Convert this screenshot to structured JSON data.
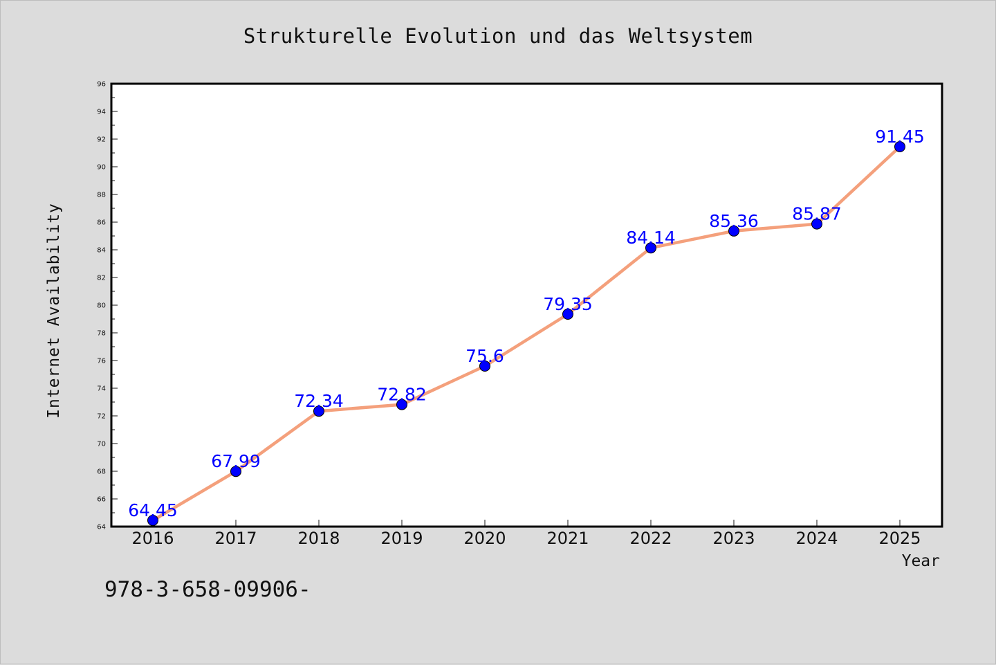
{
  "chart_data": {
    "type": "line",
    "title": "Strukturelle Evolution und das Weltsystem",
    "xlabel": "Year",
    "ylabel": "Internet Availability",
    "categories": [
      "2016",
      "2017",
      "2018",
      "2019",
      "2020",
      "2021",
      "2022",
      "2023",
      "2024",
      "2025"
    ],
    "series": [
      {
        "values": [
          64.45,
          67.99,
          72.34,
          72.82,
          75.6,
          79.35,
          84.14,
          85.36,
          85.87,
          91.45
        ],
        "line_color": "#f4a07c",
        "marker_color": "#0000ff"
      }
    ],
    "data_labels": [
      "64.45",
      "67.99",
      "72.34",
      "72.82",
      "75.6",
      "79.35",
      "84.14",
      "85.36",
      "85.87",
      "91.45"
    ],
    "ylim": [
      64,
      96
    ],
    "yticks": [
      "64",
      "66",
      "68",
      "70",
      "72",
      "74",
      "76",
      "78",
      "80",
      "82",
      "84",
      "86",
      "88",
      "90",
      "92",
      "94",
      "96"
    ],
    "grid": false,
    "legend": "none"
  },
  "footer": {
    "text": "978-3-658-09906-"
  }
}
